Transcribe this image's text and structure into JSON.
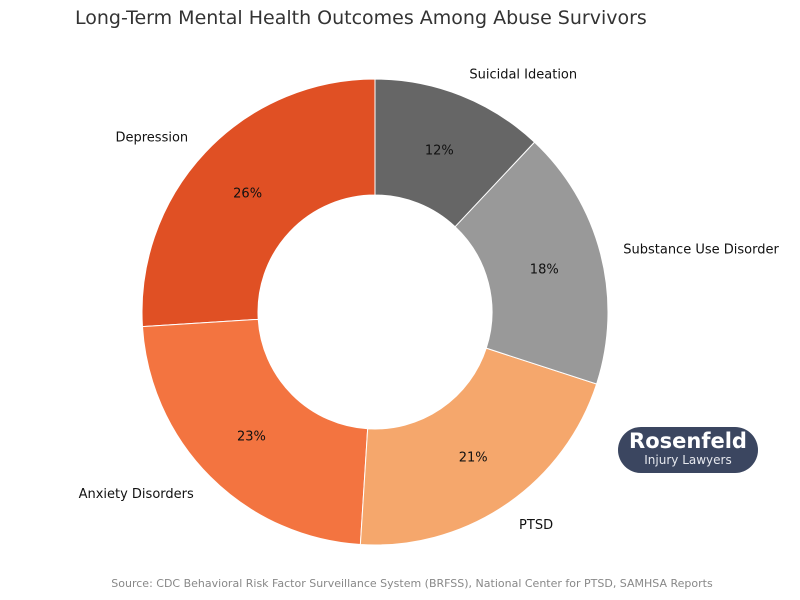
{
  "chart_data": {
    "type": "pie",
    "donut": true,
    "title": "Long-Term Mental Health Outcomes Among Abuse Survivors",
    "start_angle_deg": 90,
    "direction": "counterclockwise",
    "categories": [
      "Depression",
      "Anxiety Disorders",
      "PTSD",
      "Substance Use Disorder",
      "Suicidal Ideation"
    ],
    "values": [
      26,
      23,
      21,
      18,
      12
    ],
    "value_labels": [
      "26%",
      "23%",
      "21%",
      "18%",
      "12%"
    ],
    "colors": [
      "#E05024",
      "#F37440",
      "#F5A76C",
      "#999999",
      "#666666"
    ]
  },
  "source": "Source: CDC Behavioral Risk Factor Surveillance System (BRFSS), National Center for PTSD, SAMHSA Reports",
  "logo": {
    "line1": "Rosenfeld",
    "line2": "Injury Lawyers"
  }
}
